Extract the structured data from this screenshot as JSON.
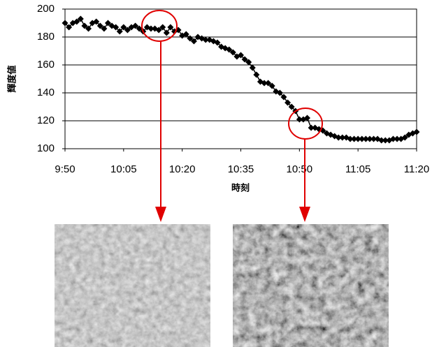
{
  "chart_data": {
    "type": "line",
    "xlabel": "時刻",
    "ylabel": "輝度値",
    "x": [
      "9:50",
      "9:51",
      "9:52",
      "9:53",
      "9:54",
      "9:55",
      "9:56",
      "9:57",
      "9:58",
      "9:59",
      "10:00",
      "10:01",
      "10:02",
      "10:03",
      "10:04",
      "10:05",
      "10:06",
      "10:07",
      "10:08",
      "10:09",
      "10:10",
      "10:11",
      "10:12",
      "10:13",
      "10:14",
      "10:15",
      "10:16",
      "10:17",
      "10:18",
      "10:19",
      "10:20",
      "10:21",
      "10:22",
      "10:23",
      "10:24",
      "10:25",
      "10:26",
      "10:27",
      "10:28",
      "10:29",
      "10:30",
      "10:31",
      "10:32",
      "10:33",
      "10:34",
      "10:35",
      "10:36",
      "10:37",
      "10:38",
      "10:39",
      "10:40",
      "10:41",
      "10:42",
      "10:43",
      "10:44",
      "10:45",
      "10:46",
      "10:47",
      "10:48",
      "10:49",
      "10:50",
      "10:51",
      "10:52",
      "10:53",
      "10:54",
      "10:55",
      "10:56",
      "10:57",
      "10:58",
      "10:59",
      "11:00",
      "11:01",
      "11:02",
      "11:03",
      "11:04",
      "11:05",
      "11:06",
      "11:07",
      "11:08",
      "11:09",
      "11:10",
      "11:11",
      "11:12",
      "11:13",
      "11:14",
      "11:15",
      "11:16",
      "11:17",
      "11:18",
      "11:19",
      "11:20"
    ],
    "series": [
      {
        "color": "#000000",
        "values": [
          190,
          187,
          190,
          191,
          193,
          188,
          186,
          190,
          191,
          188,
          186,
          190,
          188,
          187,
          184,
          187,
          185,
          187,
          188,
          186,
          184,
          187,
          186,
          186,
          185,
          187,
          183,
          187,
          184,
          185,
          181,
          182,
          179,
          177,
          180,
          179,
          178,
          178,
          177,
          176,
          173,
          172,
          171,
          169,
          166,
          167,
          164,
          162,
          158,
          153,
          148,
          147,
          147,
          145,
          141,
          140,
          137,
          133,
          130,
          127,
          121,
          121,
          122,
          115,
          115,
          114,
          113,
          111,
          110,
          109,
          108,
          108,
          108,
          107,
          107,
          107,
          107,
          107,
          107,
          107,
          107,
          106,
          106,
          106,
          107,
          107,
          107,
          108,
          110,
          111,
          112
        ]
      }
    ],
    "xlim": [
      "9:50",
      "11:20"
    ],
    "xticks": [
      "9:50",
      "10:05",
      "10:20",
      "10:35",
      "10:50",
      "11:05",
      "11:20"
    ],
    "ylim": [
      100,
      200
    ],
    "yticks": [
      100,
      120,
      140,
      160,
      180,
      200
    ],
    "grid": true
  }
}
